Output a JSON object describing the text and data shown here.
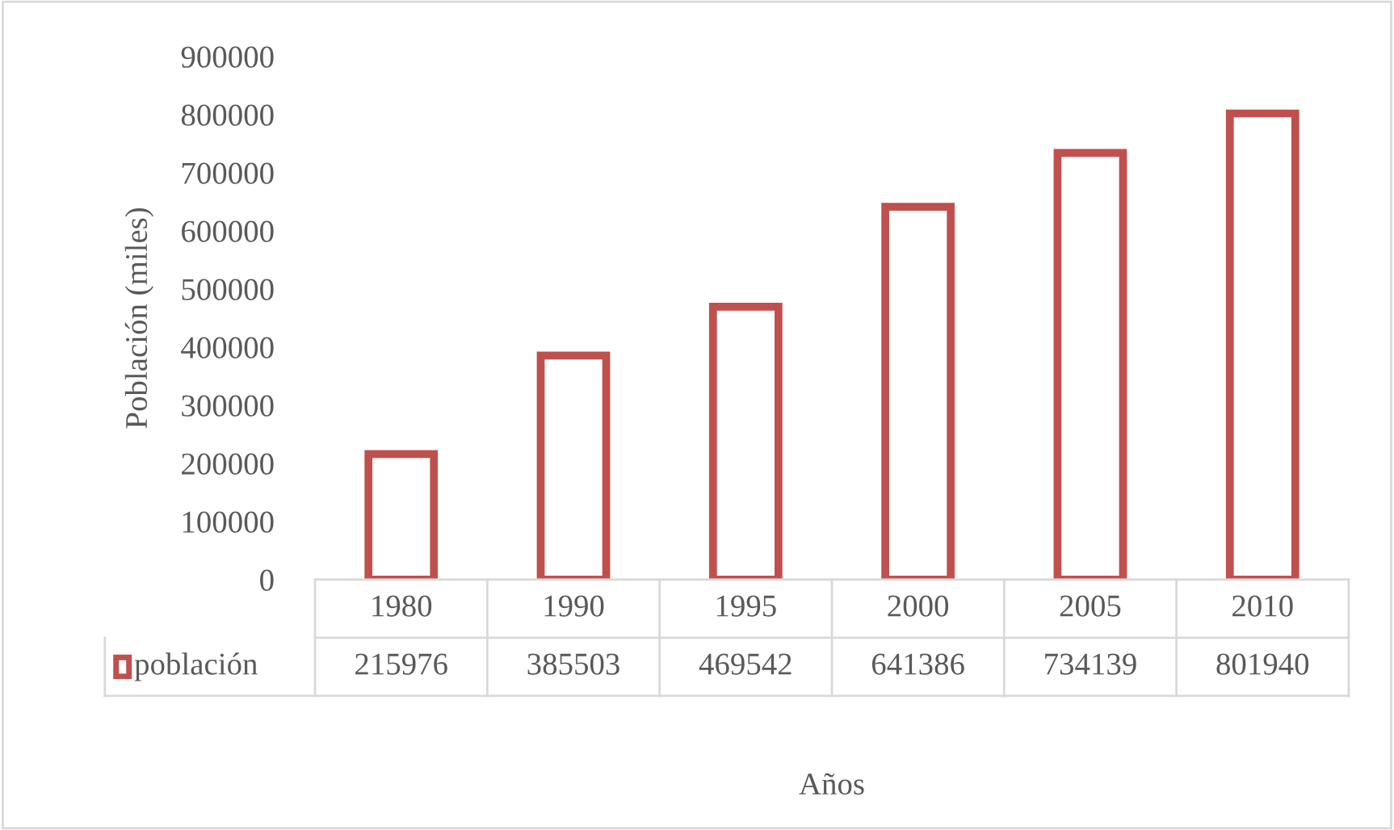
{
  "chart_data": {
    "type": "bar",
    "xlabel": "Años",
    "ylabel": "Población (miles)",
    "categories": [
      "1980",
      "1990",
      "1995",
      "2000",
      "2005",
      "2010"
    ],
    "series": [
      {
        "name": "población",
        "color": "#c0504d",
        "values": [
          215976,
          385503,
          469542,
          641386,
          734139,
          801940
        ]
      }
    ],
    "ylim": [
      0,
      900000
    ],
    "yticks": [
      0,
      100000,
      200000,
      300000,
      400000,
      500000,
      600000,
      700000,
      800000,
      900000
    ],
    "grid": false,
    "legend": "bottom",
    "data_labels": true
  }
}
